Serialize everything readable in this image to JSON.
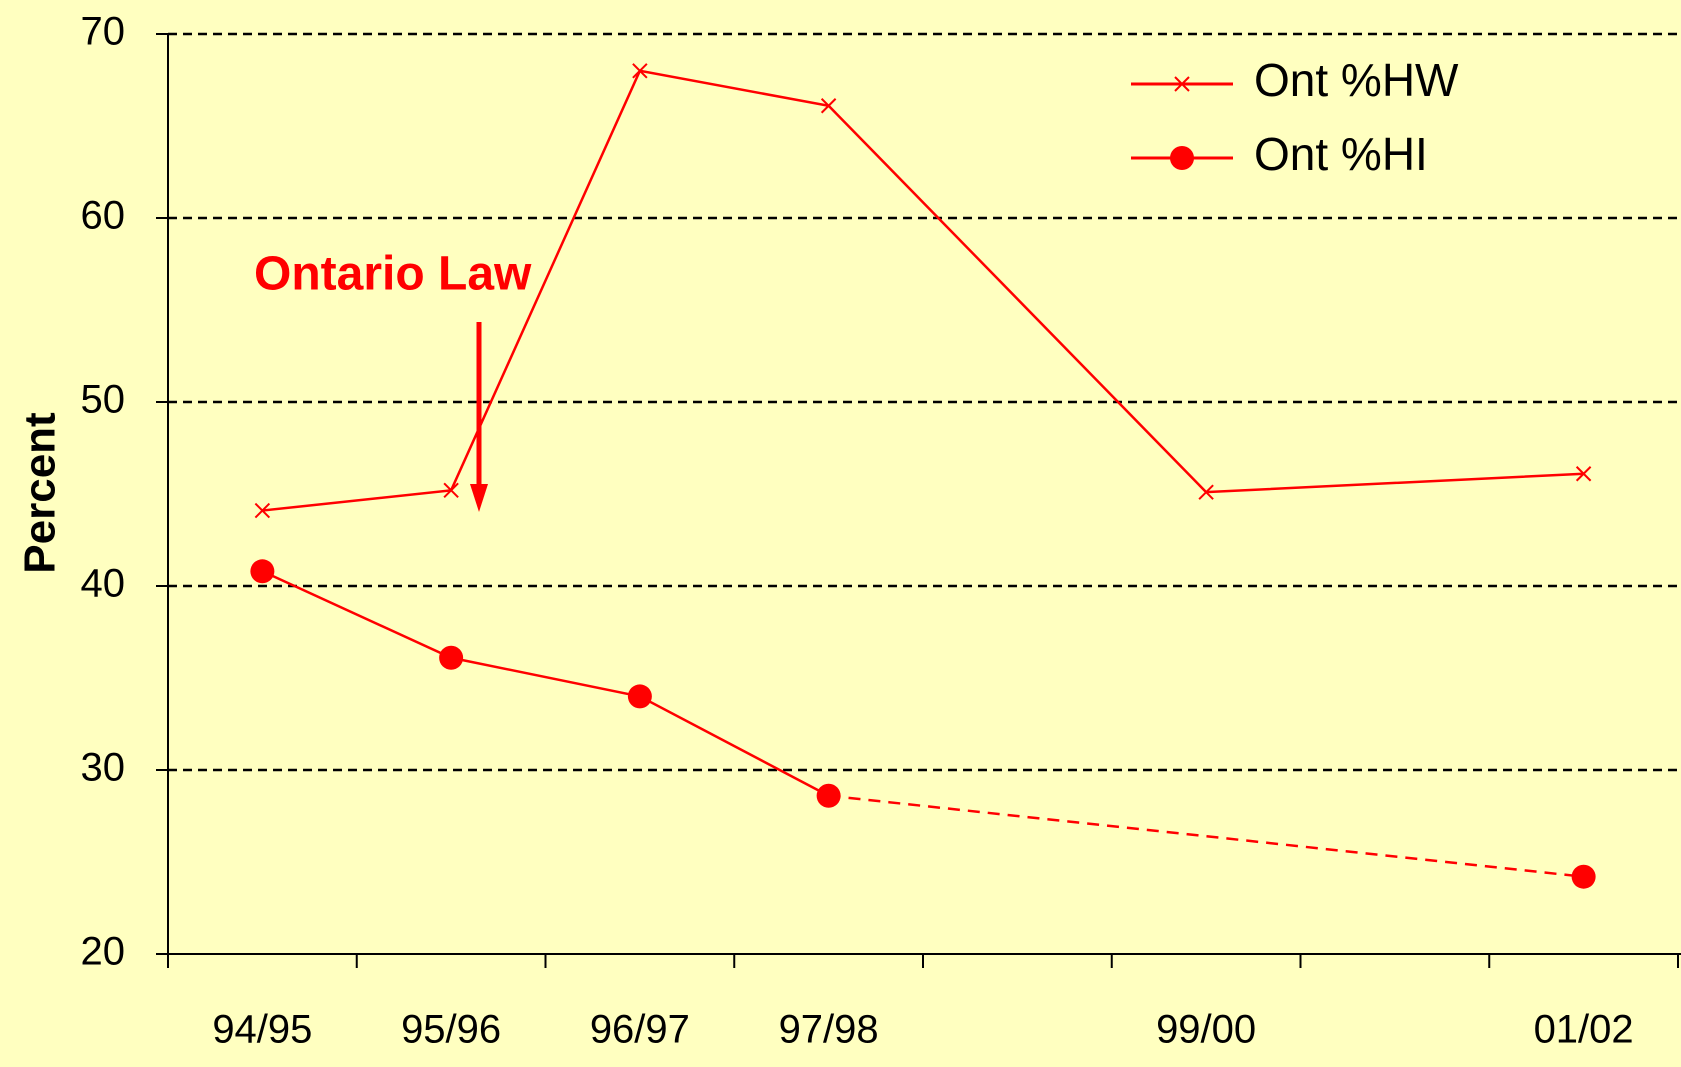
{
  "chart_data": {
    "type": "line",
    "categories": [
      "94/95",
      "95/96",
      "96/97",
      "97/98",
      null,
      "99/00",
      null,
      "01/02"
    ],
    "series": [
      {
        "name": "Ont %HW",
        "color": "#ff0000",
        "marker": "x",
        "values": [
          44.1,
          45.2,
          68,
          66.1,
          null,
          45.1,
          null,
          46.1
        ]
      },
      {
        "name": "Ont %HI",
        "color": "#ff0000",
        "marker": "circle",
        "dash_from_index": 3,
        "values": [
          40.8,
          36.1,
          34,
          28.6,
          null,
          null,
          null,
          24.2
        ]
      }
    ],
    "connect_gaps": true,
    "ylabel": "Percent",
    "ylim": [
      20,
      70
    ],
    "yticks": [
      20,
      30,
      40,
      50,
      60,
      70
    ],
    "grid": true,
    "legend": "upper right",
    "annotation": {
      "text": "Ontario Law",
      "color": "#ff0000"
    }
  }
}
